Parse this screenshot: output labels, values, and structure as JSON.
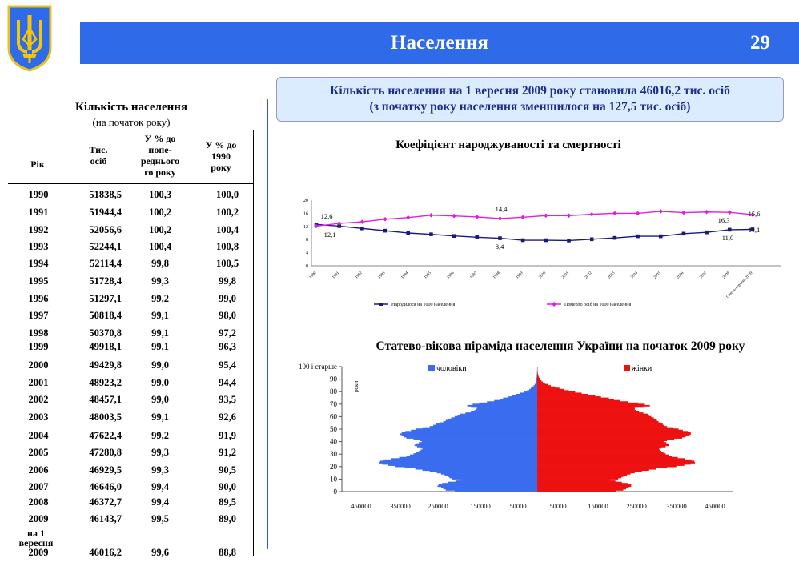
{
  "header": {
    "title": "Населення",
    "page_number": "29"
  },
  "info_box": {
    "line1": "Кількість населення на 1 вересня 2009 року становила 46016,2 тис. осіб",
    "line2": "(з початку року населення зменшилося на 127,5 тис. осіб)"
  },
  "table": {
    "title": "Кількість населення",
    "subtitle": "(на початок року)",
    "headers": {
      "year": "Рік",
      "thousands": [
        "Тис.",
        "осіб"
      ],
      "prev_pct": [
        "У % до",
        "попе-",
        "реднього",
        "го року"
      ],
      "pct_1990": [
        "У % до",
        "1990",
        "року"
      ]
    },
    "rows": [
      [
        "1990",
        "51838,5",
        "100,3",
        "100,0"
      ],
      [
        "1991",
        "51944,4",
        "100,2",
        "100,2"
      ],
      [
        "1992",
        "52056,6",
        "100,2",
        "100,4"
      ],
      [
        "1993",
        "52244,1",
        "100,4",
        "100,8"
      ],
      [
        "1994",
        "52114,4",
        "99,8",
        "100,5"
      ],
      [
        "1995",
        "51728,4",
        "99,3",
        "99,8"
      ],
      [
        "1996",
        "51297,1",
        "99,2",
        "99,0"
      ],
      [
        "1997",
        "50818,4",
        "99,1",
        "98,0"
      ],
      [
        "1998",
        "50370,8",
        "99,1",
        "97,2"
      ],
      [
        "1999",
        "49918,1",
        "99,1",
        "96,3"
      ],
      [
        "2000",
        "49429,8",
        "99,0",
        "95,4"
      ],
      [
        "2001",
        "48923,2",
        "99,0",
        "94,4"
      ],
      [
        "2002",
        "48457,1",
        "99,0",
        "93,5"
      ],
      [
        "2003",
        "48003,5",
        "99,1",
        "92,6"
      ],
      [
        "2004",
        "47622,4",
        "99,2",
        "91,9"
      ],
      [
        "2005",
        "47280,8",
        "99,3",
        "91,2"
      ],
      [
        "2006",
        "46929,5",
        "99,3",
        "90,5"
      ],
      [
        "2007",
        "46646,0",
        "99,4",
        "90,0"
      ],
      [
        "2008",
        "46372,7",
        "99,4",
        "89,5"
      ],
      [
        "2009",
        "46143,7",
        "99,5",
        "89,0"
      ],
      [
        "2009",
        "46016,2",
        "99,6",
        "88,8"
      ]
    ],
    "last_row_label": [
      "на 1",
      "вересня"
    ]
  },
  "chart_data": [
    {
      "type": "line",
      "title": "Коефіцієнт народжуваності та смертності",
      "categories": [
        "1990",
        "1991",
        "1992",
        "1993",
        "1994",
        "1995",
        "1996",
        "1997",
        "1998",
        "1999",
        "2000",
        "2001",
        "2002",
        "2003",
        "2004",
        "2005",
        "2006",
        "2007",
        "2008",
        "Січень-серпень 2009"
      ],
      "ylim": [
        0,
        20
      ],
      "yticks": [
        "0",
        "4",
        "8",
        "12",
        "16",
        "20"
      ],
      "series": [
        {
          "name": "Народилося на 1000 населення",
          "color": "#1a1a7a",
          "values": [
            12.6,
            12.1,
            11.4,
            10.7,
            10.0,
            9.6,
            9.1,
            8.7,
            8.4,
            7.8,
            7.8,
            7.7,
            8.1,
            8.5,
            9.0,
            9.0,
            9.8,
            10.2,
            11.0,
            11.1
          ]
        },
        {
          "name": "Померло осіб на 1000 населення",
          "color": "#e020e0",
          "values": [
            12.1,
            12.9,
            13.4,
            14.2,
            14.7,
            15.4,
            15.2,
            14.9,
            14.4,
            14.8,
            15.3,
            15.3,
            15.7,
            16.0,
            16.0,
            16.6,
            16.2,
            16.4,
            16.3,
            15.6
          ]
        }
      ],
      "data_labels": [
        {
          "text": "12,6"
        },
        {
          "text": "12,1"
        },
        {
          "text": "14,4"
        },
        {
          "text": "8,4"
        },
        {
          "text": "16,3"
        },
        {
          "text": "11,0"
        },
        {
          "text": "15,6"
        },
        {
          "text": "11,1"
        }
      ],
      "legend_position": "bottom"
    },
    {
      "type": "bar",
      "title": "Статево-вікова піраміда населення України на початок 2009 року",
      "orientation": "horizontal",
      "ylabel": "роки",
      "y_tick_labels": [
        "0",
        "10",
        "20",
        "30",
        "40",
        "50",
        "60",
        "70",
        "80",
        "90",
        "100 і старше"
      ],
      "x_tick_labels": [
        "450000",
        "350000",
        "250000",
        "150000",
        "50000",
        "50000",
        "150000",
        "250000",
        "350000",
        "450000"
      ],
      "xlim": [
        -500000,
        500000
      ],
      "series": [
        {
          "name": "чоловіки",
          "color": "#3a6cf0",
          "values": [
            230000,
            255000,
            262000,
            268000,
            278000,
            275000,
            265000,
            248000,
            228000,
            212000,
            238000,
            245000,
            250000,
            258000,
            268000,
            280000,
            300000,
            320000,
            340000,
            370000,
            395000,
            415000,
            432000,
            442000,
            438000,
            428000,
            408000,
            385000,
            365000,
            355000,
            345000,
            338000,
            330000,
            325000,
            320000,
            325000,
            335000,
            342000,
            338000,
            330000,
            322000,
            328000,
            345000,
            365000,
            372000,
            378000,
            382000,
            378000,
            368000,
            352000,
            338000,
            320000,
            300000,
            290000,
            282000,
            270000,
            262000,
            255000,
            248000,
            240000,
            230000,
            222000,
            215000,
            200000,
            185000,
            175000,
            170000,
            168000,
            185000,
            195000,
            180000,
            162000,
            140000,
            120000,
            105000,
            95000,
            80000,
            70000,
            58000,
            48000,
            38000,
            28000,
            22000,
            18000,
            14000,
            10000,
            7000,
            5000,
            4000,
            3000,
            2500,
            2000,
            1500,
            1200,
            1000,
            800,
            600,
            400,
            300,
            200,
            100
          ]
        },
        {
          "name": "жінки",
          "color": "#ee1111",
          "values": [
            220000,
            240000,
            248000,
            255000,
            262000,
            262000,
            252000,
            236000,
            218000,
            202000,
            226000,
            235000,
            240000,
            250000,
            260000,
            272000,
            292000,
            312000,
            332000,
            362000,
            388000,
            410000,
            428000,
            440000,
            438000,
            430000,
            412000,
            392000,
            375000,
            366000,
            358000,
            352000,
            346000,
            342000,
            340000,
            346000,
            358000,
            368000,
            366000,
            360000,
            354000,
            362000,
            382000,
            404000,
            414000,
            422000,
            428000,
            428000,
            420000,
            406000,
            394000,
            378000,
            362000,
            354000,
            350000,
            342000,
            338000,
            334000,
            330000,
            325000,
            318000,
            312000,
            308000,
            296000,
            284000,
            276000,
            272000,
            272000,
            296000,
            314000,
            300000,
            282000,
            254000,
            232000,
            214000,
            200000,
            178000,
            162000,
            142000,
            124000,
            106000,
            88000,
            74000,
            62000,
            50000,
            38000,
            30000,
            22000,
            16000,
            12000,
            9000,
            7000,
            5000,
            3500,
            2500,
            1800,
            1200,
            800,
            500,
            300,
            200
          ]
        }
      ],
      "legend_position": "top"
    }
  ]
}
